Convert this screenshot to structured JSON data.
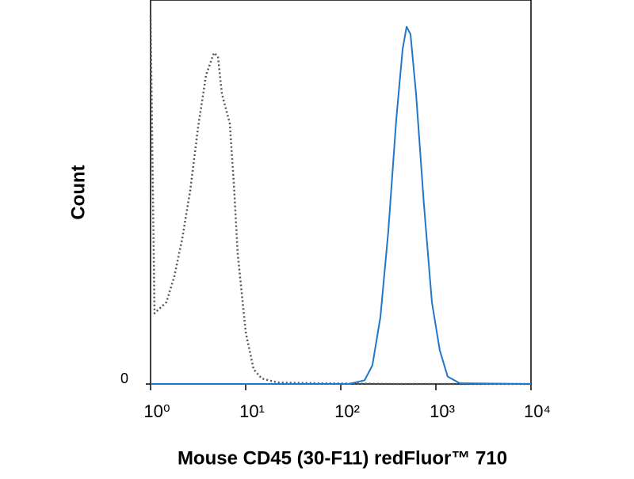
{
  "chart_data": {
    "type": "line",
    "xlabel": "Mouse CD45 (30-F11) redFluor™ 710",
    "ylabel": "Count",
    "xscale": "log",
    "xlim": [
      1,
      10000
    ],
    "ylim": [
      0,
      100
    ],
    "xticks": [
      {
        "value": 1,
        "label": "10⁰"
      },
      {
        "value": 10,
        "label": "10¹"
      },
      {
        "value": 100,
        "label": "10²"
      },
      {
        "value": 1000,
        "label": "10³"
      },
      {
        "value": 10000,
        "label": "10⁴"
      }
    ],
    "yticks": [
      0
    ],
    "series": [
      {
        "color": "#555555",
        "linestyle": "dotted",
        "x": [
          1,
          1.1,
          1.21,
          1.47,
          1.78,
          2.15,
          2.61,
          3.16,
          3.83,
          4.64,
          5.11,
          5.62,
          6.81,
          7.5,
          8.25,
          10,
          12.1,
          14.7,
          21.5,
          56.2,
          383,
          10000
        ],
        "values": [
          99,
          19,
          20,
          22,
          29,
          39,
          52,
          69,
          83,
          89,
          88,
          78,
          70,
          54,
          35,
          14,
          4,
          1.5,
          0.4,
          0.2,
          0,
          0
        ]
      },
      {
        "color": "#1f77c9",
        "linestyle": "solid",
        "x": [
          1,
          121,
          178,
          215,
          261,
          316,
          383,
          447,
          492,
          541,
          619,
          750,
          908,
          1100,
          1330,
          1780,
          10000
        ],
        "values": [
          0,
          0,
          1,
          5,
          18,
          41,
          71,
          90,
          96,
          94,
          78,
          48,
          22,
          9,
          2,
          0.2,
          0
        ]
      }
    ]
  }
}
